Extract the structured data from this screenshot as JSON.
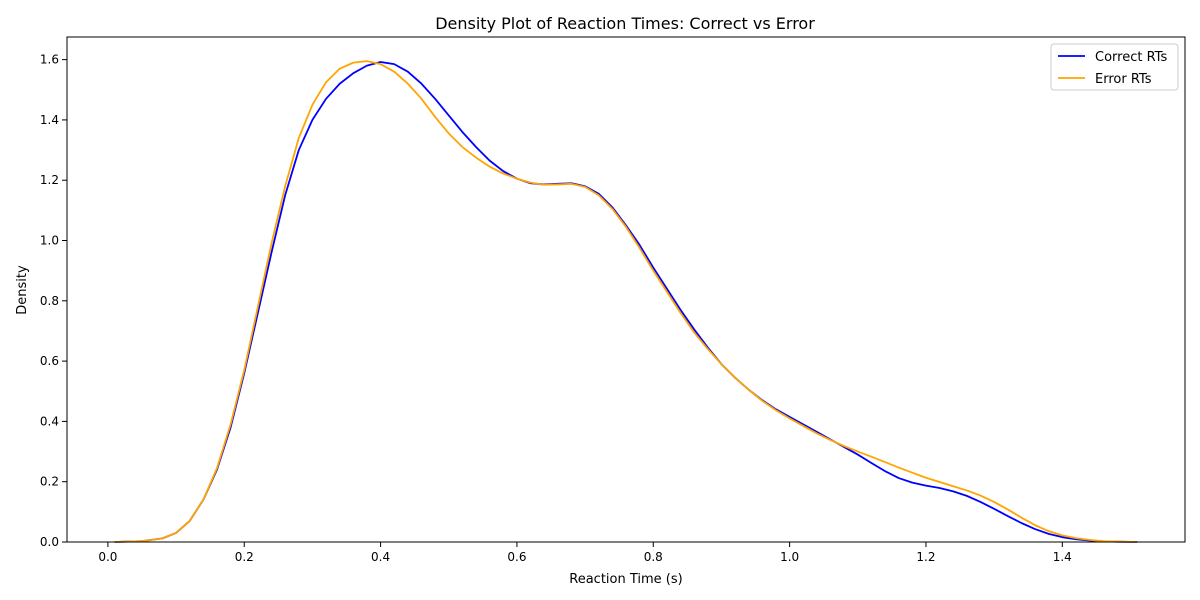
{
  "chart_data": {
    "type": "line",
    "title": "Density Plot of Reaction Times: Correct vs Error",
    "xlabel": "Reaction Time (s)",
    "ylabel": "Density",
    "xlim": [
      -0.06,
      1.58
    ],
    "ylim": [
      0,
      1.675
    ],
    "x_ticks": [
      "0.0",
      "0.2",
      "0.4",
      "0.6",
      "0.8",
      "1.0",
      "1.2",
      "1.4"
    ],
    "y_ticks": [
      "0.0",
      "0.2",
      "0.4",
      "0.6",
      "0.8",
      "1.0",
      "1.2",
      "1.4",
      "1.6"
    ],
    "grid": false,
    "legend_position": "top-right",
    "series": [
      {
        "name": "Correct RTs",
        "color": "#0000ff",
        "points": [
          [
            0.01,
            0.0
          ],
          [
            0.05,
            0.003
          ],
          [
            0.08,
            0.012
          ],
          [
            0.1,
            0.03
          ],
          [
            0.12,
            0.07
          ],
          [
            0.14,
            0.14
          ],
          [
            0.16,
            0.24
          ],
          [
            0.18,
            0.38
          ],
          [
            0.2,
            0.56
          ],
          [
            0.22,
            0.76
          ],
          [
            0.24,
            0.96
          ],
          [
            0.26,
            1.15
          ],
          [
            0.28,
            1.3
          ],
          [
            0.3,
            1.4
          ],
          [
            0.32,
            1.47
          ],
          [
            0.34,
            1.52
          ],
          [
            0.36,
            1.555
          ],
          [
            0.38,
            1.58
          ],
          [
            0.4,
            1.592
          ],
          [
            0.42,
            1.585
          ],
          [
            0.44,
            1.56
          ],
          [
            0.46,
            1.52
          ],
          [
            0.48,
            1.47
          ],
          [
            0.5,
            1.415
          ],
          [
            0.52,
            1.36
          ],
          [
            0.54,
            1.31
          ],
          [
            0.56,
            1.265
          ],
          [
            0.58,
            1.23
          ],
          [
            0.6,
            1.205
          ],
          [
            0.62,
            1.19
          ],
          [
            0.64,
            1.186
          ],
          [
            0.66,
            1.188
          ],
          [
            0.68,
            1.19
          ],
          [
            0.7,
            1.18
          ],
          [
            0.72,
            1.155
          ],
          [
            0.74,
            1.11
          ],
          [
            0.76,
            1.05
          ],
          [
            0.78,
            0.985
          ],
          [
            0.8,
            0.91
          ],
          [
            0.82,
            0.84
          ],
          [
            0.84,
            0.77
          ],
          [
            0.86,
            0.705
          ],
          [
            0.88,
            0.645
          ],
          [
            0.9,
            0.59
          ],
          [
            0.92,
            0.545
          ],
          [
            0.94,
            0.505
          ],
          [
            0.96,
            0.47
          ],
          [
            0.98,
            0.44
          ],
          [
            1.0,
            0.415
          ],
          [
            1.02,
            0.39
          ],
          [
            1.04,
            0.365
          ],
          [
            1.06,
            0.34
          ],
          [
            1.08,
            0.315
          ],
          [
            1.1,
            0.29
          ],
          [
            1.12,
            0.262
          ],
          [
            1.14,
            0.235
          ],
          [
            1.16,
            0.212
          ],
          [
            1.18,
            0.197
          ],
          [
            1.2,
            0.187
          ],
          [
            1.22,
            0.179
          ],
          [
            1.24,
            0.168
          ],
          [
            1.26,
            0.153
          ],
          [
            1.28,
            0.133
          ],
          [
            1.3,
            0.11
          ],
          [
            1.32,
            0.086
          ],
          [
            1.34,
            0.063
          ],
          [
            1.36,
            0.043
          ],
          [
            1.38,
            0.027
          ],
          [
            1.4,
            0.016
          ],
          [
            1.42,
            0.009
          ],
          [
            1.44,
            0.005
          ],
          [
            1.46,
            0.002
          ],
          [
            1.48,
            0.001
          ],
          [
            1.51,
            0.0
          ]
        ]
      },
      {
        "name": "Error RTs",
        "color": "#ffa500",
        "points": [
          [
            0.01,
            0.0
          ],
          [
            0.05,
            0.003
          ],
          [
            0.08,
            0.012
          ],
          [
            0.1,
            0.03
          ],
          [
            0.12,
            0.07
          ],
          [
            0.14,
            0.14
          ],
          [
            0.16,
            0.245
          ],
          [
            0.18,
            0.39
          ],
          [
            0.2,
            0.57
          ],
          [
            0.22,
            0.78
          ],
          [
            0.24,
            0.99
          ],
          [
            0.26,
            1.18
          ],
          [
            0.28,
            1.34
          ],
          [
            0.3,
            1.45
          ],
          [
            0.32,
            1.525
          ],
          [
            0.34,
            1.57
          ],
          [
            0.36,
            1.59
          ],
          [
            0.38,
            1.595
          ],
          [
            0.4,
            1.585
          ],
          [
            0.42,
            1.56
          ],
          [
            0.44,
            1.52
          ],
          [
            0.46,
            1.47
          ],
          [
            0.48,
            1.41
          ],
          [
            0.5,
            1.355
          ],
          [
            0.52,
            1.31
          ],
          [
            0.54,
            1.275
          ],
          [
            0.56,
            1.245
          ],
          [
            0.58,
            1.222
          ],
          [
            0.6,
            1.205
          ],
          [
            0.62,
            1.192
          ],
          [
            0.64,
            1.185
          ],
          [
            0.66,
            1.186
          ],
          [
            0.68,
            1.188
          ],
          [
            0.7,
            1.178
          ],
          [
            0.72,
            1.15
          ],
          [
            0.74,
            1.105
          ],
          [
            0.76,
            1.045
          ],
          [
            0.78,
            0.975
          ],
          [
            0.8,
            0.9
          ],
          [
            0.82,
            0.83
          ],
          [
            0.84,
            0.76
          ],
          [
            0.86,
            0.695
          ],
          [
            0.88,
            0.64
          ],
          [
            0.9,
            0.59
          ],
          [
            0.92,
            0.545
          ],
          [
            0.94,
            0.505
          ],
          [
            0.96,
            0.468
          ],
          [
            0.98,
            0.437
          ],
          [
            1.0,
            0.41
          ],
          [
            1.02,
            0.385
          ],
          [
            1.04,
            0.36
          ],
          [
            1.06,
            0.338
          ],
          [
            1.08,
            0.318
          ],
          [
            1.1,
            0.3
          ],
          [
            1.12,
            0.283
          ],
          [
            1.14,
            0.265
          ],
          [
            1.16,
            0.247
          ],
          [
            1.18,
            0.23
          ],
          [
            1.2,
            0.213
          ],
          [
            1.22,
            0.199
          ],
          [
            1.24,
            0.185
          ],
          [
            1.26,
            0.171
          ],
          [
            1.28,
            0.154
          ],
          [
            1.3,
            0.133
          ],
          [
            1.32,
            0.108
          ],
          [
            1.34,
            0.081
          ],
          [
            1.36,
            0.056
          ],
          [
            1.38,
            0.036
          ],
          [
            1.4,
            0.022
          ],
          [
            1.42,
            0.013
          ],
          [
            1.44,
            0.007
          ],
          [
            1.46,
            0.003
          ],
          [
            1.48,
            0.0015
          ],
          [
            1.51,
            0.0
          ]
        ]
      }
    ]
  }
}
